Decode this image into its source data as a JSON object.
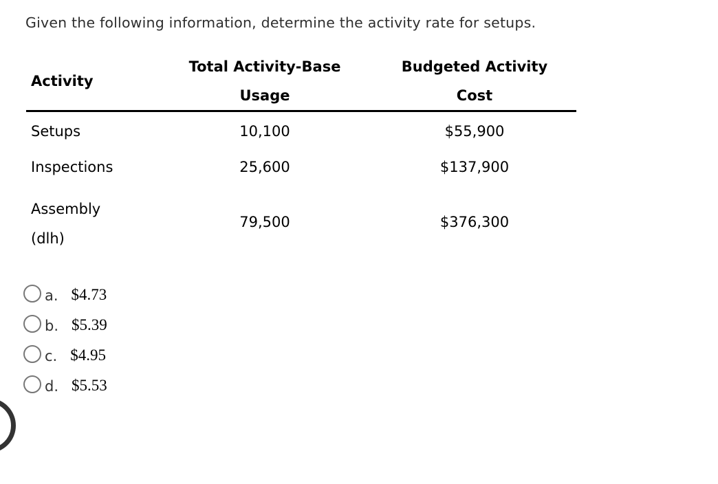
{
  "question": {
    "text": "Given the following information, determine the activity rate for setups."
  },
  "table": {
    "header": {
      "col1": "Activity",
      "col2_line1": "Total Activity-Base",
      "col2_line2": "Usage",
      "col3_line1": "Budgeted Activity",
      "col3_line2": "Cost"
    },
    "rows": [
      {
        "activity": "Setups",
        "usage": "10,100",
        "cost": "$55,900"
      },
      {
        "activity": "Inspections",
        "usage": "25,600",
        "cost": "$137,900"
      },
      {
        "activity_line1": "Assembly",
        "activity_line2": "(dlh)",
        "usage": "79,500",
        "cost": "$376,300"
      }
    ]
  },
  "options": [
    {
      "letter": "a.",
      "value": "$4.73"
    },
    {
      "letter": "b.",
      "value": "$5.39"
    },
    {
      "letter": "c.",
      "value": "$4.95"
    },
    {
      "letter": "d.",
      "value": "$5.53"
    }
  ],
  "colors": {
    "background": "#ffffff",
    "question_text": "#2e2e2e",
    "table_text": "#000000",
    "table_rule": "#000000",
    "option_letter": "#333333",
    "option_value": "#000000",
    "radio_border": "#777777",
    "edge_arc": "#333333"
  }
}
